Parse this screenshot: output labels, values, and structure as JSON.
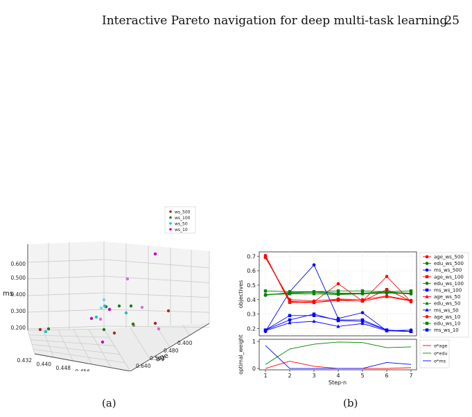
{
  "page": {
    "header_title": "Interactive Pareto navigation for deep multi-task learning",
    "page_number": "25",
    "caption_a": "(a)",
    "caption_b": "(b)"
  },
  "chart_data": [
    {
      "type": "scatter",
      "projection": "3d",
      "legend": [
        "ws_500",
        "ws_100",
        "ws_50",
        "ws_10"
      ],
      "colors": {
        "ws_500": "#a52a2a",
        "ws_100": "#1a7a1a",
        "ws_50": "#20c0c0",
        "ws_10": "#c000c0"
      },
      "axes": {
        "x": {
          "label": "edu",
          "ticks": [
            "0.432",
            "0.440",
            "0.448",
            "0.456",
            "0.464",
            "0.472"
          ]
        },
        "y": {
          "label": "age",
          "ticks": [
            "0.400",
            "0.480",
            "0.560",
            "0.640",
            "0.720"
          ]
        },
        "z": {
          "label": "ms",
          "ticks": [
            "0.200",
            "0.300",
            "0.400",
            "0.500",
            "0.600"
          ]
        }
      }
    },
    {
      "type": "line",
      "top": {
        "ylabel": "objectives",
        "yticks": [
          "0.2",
          "0.3",
          "0.4",
          "0.5",
          "0.6",
          "0.7"
        ],
        "ylim": [
          0.15,
          0.73
        ],
        "x": [
          1,
          2,
          3,
          4,
          5,
          6,
          7
        ],
        "series": [
          {
            "name": "age_ws_500",
            "color": "#ff0000",
            "marker": "circle",
            "values": [
              0.705,
              0.385,
              0.385,
              0.51,
              0.39,
              0.56,
              0.385
            ]
          },
          {
            "name": "edu_ws_500",
            "color": "#008000",
            "marker": "circle",
            "values": [
              0.43,
              0.45,
              0.455,
              0.445,
              0.445,
              0.455,
              0.44
            ]
          },
          {
            "name": "ms_ws_500",
            "color": "#0000ff",
            "marker": "circle",
            "values": [
              0.18,
              0.455,
              0.64,
              0.27,
              0.31,
              0.185,
              0.19
            ]
          },
          {
            "name": "age_ws_100",
            "color": "#ff0000",
            "marker": "square",
            "values": [
              0.695,
              0.39,
              0.38,
              0.4,
              0.39,
              0.47,
              0.39
            ]
          },
          {
            "name": "edu_ws_100",
            "color": "#008000",
            "marker": "circle",
            "values": [
              0.435,
              0.445,
              0.45,
              0.44,
              0.44,
              0.445,
              0.44
            ]
          },
          {
            "name": "ms_ws_100",
            "color": "#0000ff",
            "marker": "square",
            "values": [
              0.19,
              0.29,
              0.29,
              0.26,
              0.26,
              0.19,
              0.18
            ]
          },
          {
            "name": "age_ws_50",
            "color": "#ff0000",
            "marker": "triangle",
            "values": [
              0.7,
              0.38,
              0.38,
              0.395,
              0.39,
              0.42,
              0.39
            ]
          },
          {
            "name": "edu_ws_50",
            "color": "#008000",
            "marker": "triangle",
            "values": [
              0.435,
              0.44,
              0.44,
              0.435,
              0.44,
              0.45,
              0.445
            ]
          },
          {
            "name": "ms_ws_50",
            "color": "#0000ff",
            "marker": "triangle",
            "values": [
              0.185,
              0.24,
              0.25,
              0.215,
              0.235,
              0.185,
              0.18
            ]
          },
          {
            "name": "age_ws_10",
            "color": "#ff0000",
            "marker": "circle",
            "values": [
              0.69,
              0.4,
              0.39,
              0.405,
              0.4,
              0.425,
              0.395
            ]
          },
          {
            "name": "edu_ws_10",
            "color": "#008000",
            "marker": "square",
            "values": [
              0.46,
              0.455,
              0.455,
              0.46,
              0.46,
              0.455,
              0.46
            ]
          },
          {
            "name": "ms_ws_10",
            "color": "#0000ff",
            "marker": "square",
            "values": [
              0.19,
              0.26,
              0.3,
              0.255,
              0.25,
              0.19,
              0.18
            ]
          }
        ]
      },
      "bottom": {
        "ylabel": "optimal_weight",
        "xlabel": "Step-n",
        "yticks": [
          "0",
          "1"
        ],
        "ylim": [
          -0.05,
          1.08
        ],
        "x": [
          1,
          2,
          3,
          4,
          5,
          6,
          7
        ],
        "xticks": [
          "1",
          "2",
          "3",
          "4",
          "5",
          "6",
          "7"
        ],
        "series": [
          {
            "name": "σ*age",
            "color": "#ff0000",
            "values": [
              0.0,
              0.27,
              0.08,
              0.0,
              0.0,
              0.0,
              0.03
            ]
          },
          {
            "name": "σ*edu",
            "color": "#008000",
            "values": [
              0.15,
              0.72,
              0.9,
              0.98,
              0.96,
              0.77,
              0.8
            ]
          },
          {
            "name": "σ*ms",
            "color": "#0000ff",
            "values": [
              0.85,
              0.0,
              0.0,
              0.0,
              0.0,
              0.22,
              0.15
            ]
          }
        ]
      }
    }
  ]
}
